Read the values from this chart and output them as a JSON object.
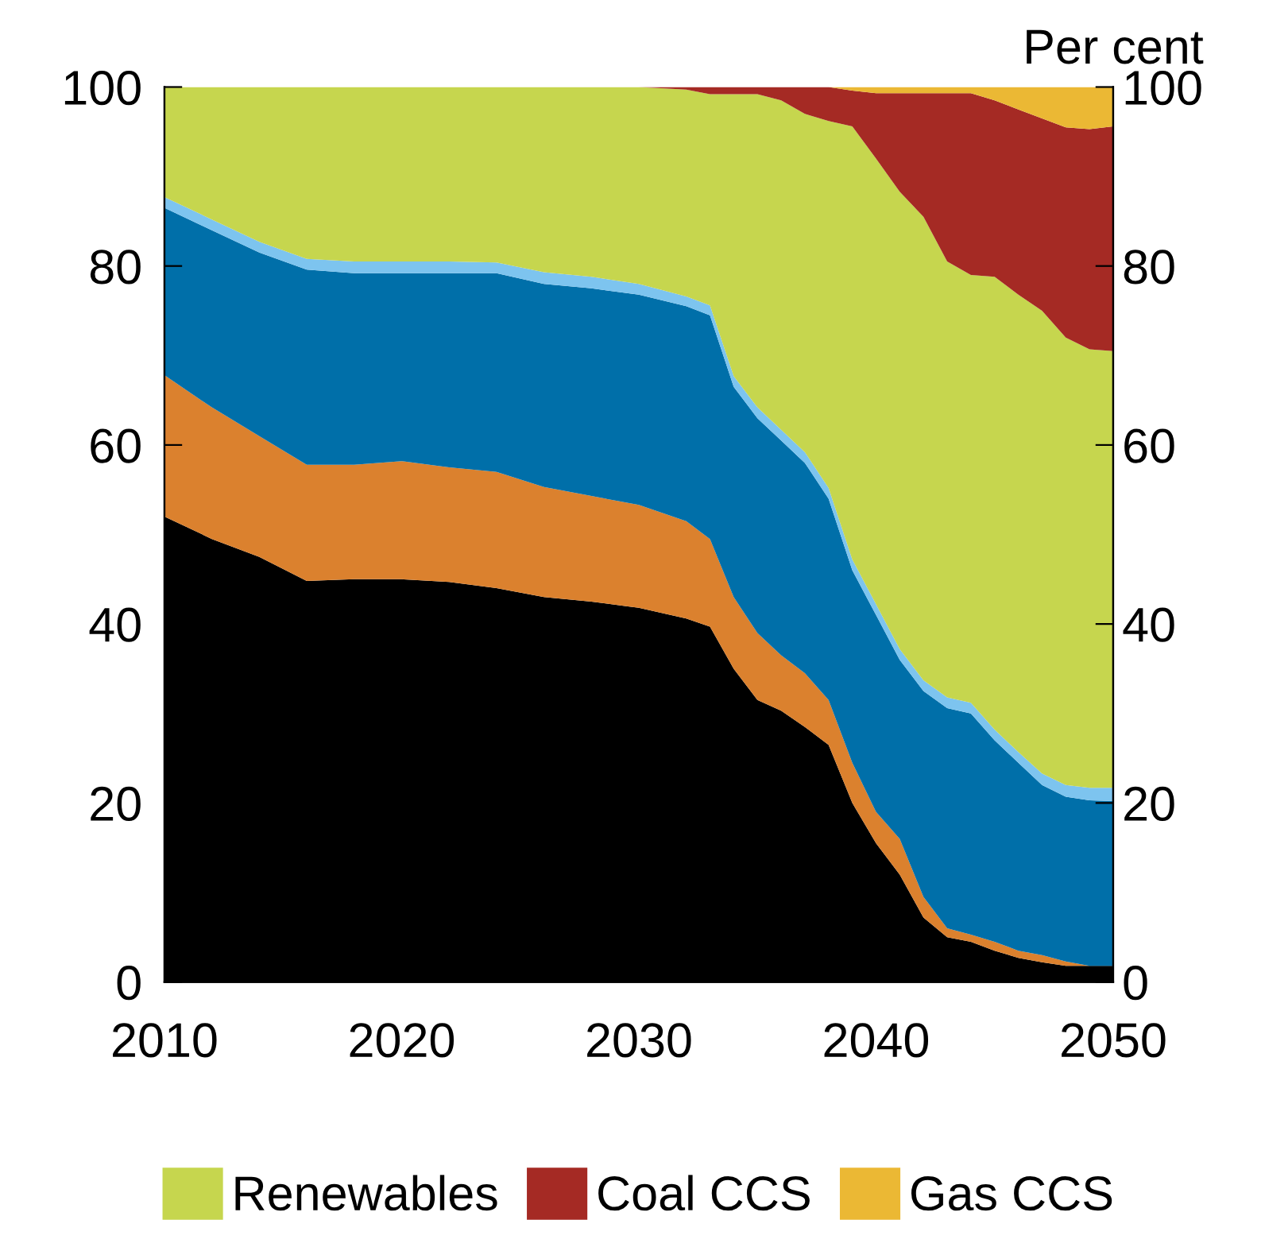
{
  "chart_data": {
    "type": "area",
    "stacked": true,
    "y2label": "Per cent",
    "x": [
      2010,
      2012,
      2014,
      2016,
      2018,
      2020,
      2022,
      2024,
      2026,
      2028,
      2030,
      2032,
      2033,
      2034,
      2035,
      2036,
      2037,
      2038,
      2039,
      2040,
      2041,
      2042,
      2043,
      2044,
      2045,
      2046,
      2047,
      2048,
      2049,
      2050
    ],
    "xlim": [
      2010,
      2050
    ],
    "xticks": [
      2010,
      2020,
      2030,
      2040,
      2050
    ],
    "ylim": [
      0,
      100
    ],
    "yticks": [
      0,
      20,
      40,
      60,
      80,
      100
    ],
    "y2lim": [
      0,
      100
    ],
    "y2ticks": [
      0,
      20,
      40,
      60,
      80,
      100
    ],
    "grid": false,
    "legend": "bottom",
    "series": [
      {
        "color": "#000000",
        "values": [
          52,
          49.5,
          47.5,
          44.8,
          45,
          45,
          44.7,
          44,
          43,
          42.5,
          41.8,
          40.6,
          39.7,
          35,
          31.5,
          30.3,
          28.5,
          26.5,
          20,
          15.5,
          12,
          7.2,
          5,
          4.5,
          3.5,
          2.7,
          2.2,
          1.8,
          1.8,
          1.8
        ]
      },
      {
        "color": "#db812e",
        "values": [
          15.8,
          14.7,
          13.5,
          13,
          12.8,
          13.2,
          12.8,
          13,
          12.3,
          11.8,
          11.5,
          10.9,
          9.8,
          8,
          7.5,
          6.2,
          6,
          5,
          4.5,
          3.5,
          4,
          2.3,
          1,
          0.8,
          1,
          0.8,
          0.8,
          0.5,
          0,
          0
        ]
      },
      {
        "color": "#006fa9",
        "values": [
          18.7,
          19.8,
          20.5,
          21.8,
          21.4,
          21,
          21.7,
          22.2,
          22.7,
          23.2,
          23.5,
          24,
          25,
          23.5,
          24,
          24,
          23.5,
          22.5,
          21.5,
          22,
          20,
          23,
          24.6,
          24.7,
          22.5,
          21,
          19,
          18.4,
          18.5,
          18.4
        ]
      },
      {
        "color": "#7dc4ef",
        "values": [
          1.2,
          1.2,
          1.2,
          1.2,
          1.3,
          1.3,
          1.3,
          1.2,
          1.3,
          1.3,
          1.2,
          1.1,
          1.1,
          1.2,
          1.2,
          1.2,
          1.2,
          1.2,
          1.2,
          1.2,
          1.2,
          1.2,
          1.2,
          1.2,
          1.2,
          1.2,
          1.3,
          1.3,
          1.4,
          1.5
        ]
      },
      {
        "name": "Renewables",
        "color": "#c6d64e",
        "values": [
          12.3,
          14.8,
          17.3,
          19.2,
          19.5,
          19.5,
          19.5,
          19.6,
          20.7,
          21.2,
          22,
          23.1,
          23.6,
          31.5,
          35,
          36.8,
          37.8,
          41,
          48.4,
          49.8,
          51.1,
          51.8,
          48.7,
          47.8,
          50.6,
          51.1,
          51.7,
          50,
          49,
          48.8
        ]
      },
      {
        "name": "Coal CCS",
        "color": "#a52a24",
        "values": [
          0,
          0,
          0,
          0,
          0,
          0,
          0,
          0,
          0,
          0,
          0,
          0.3,
          0.8,
          0.8,
          0.8,
          1.5,
          3,
          3.8,
          4,
          7.3,
          11,
          13.8,
          18.8,
          20.3,
          19.7,
          20.7,
          21.5,
          23.5,
          24.6,
          25.1
        ]
      },
      {
        "name": "Gas CCS",
        "color": "#ebb834",
        "values": [
          0,
          0,
          0,
          0,
          0,
          0,
          0,
          0,
          0,
          0,
          0,
          0,
          0,
          0,
          0,
          0,
          0,
          0,
          0.4,
          0.7,
          0.7,
          0.7,
          0.7,
          0.7,
          1.5,
          2.5,
          3.5,
          4.5,
          4.7,
          4.4
        ]
      }
    ]
  }
}
